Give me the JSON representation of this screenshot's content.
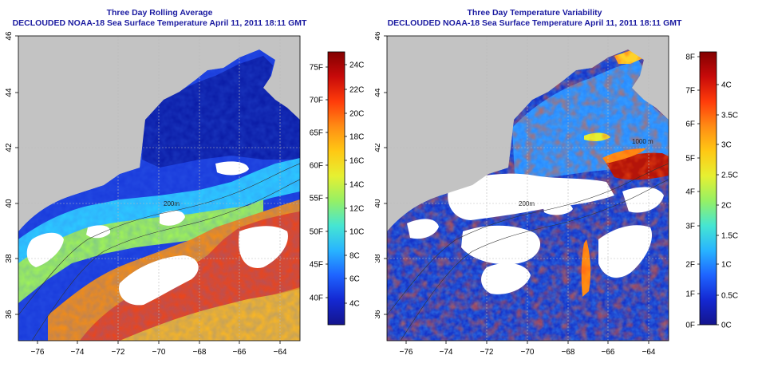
{
  "maps": [
    {
      "title": "Three Day Rolling Average",
      "subtitle": "DECLOUDED NOAA-18 Sea Surface Temperature April 11, 2011 18:11 GMT",
      "lat_ticks": [
        "36",
        "38",
        "40",
        "42",
        "44",
        "46"
      ],
      "lon_ticks": [
        "−76",
        "−74",
        "−72",
        "−70",
        "−68",
        "−66",
        "−64"
      ],
      "contour_labels": [
        "200m"
      ],
      "colorbar": {
        "gradient": [
          "#14148c",
          "#1428d2",
          "#1e64ff",
          "#28b4ff",
          "#46e6d2",
          "#96f064",
          "#e6f032",
          "#ffc814",
          "#ff8c14",
          "#ff3c0a",
          "#c80a0a",
          "#820000"
        ],
        "left_labels": [
          "40F",
          "45F",
          "50F",
          "55F",
          "60F",
          "65F",
          "70F",
          "75F"
        ],
        "right_labels": [
          "4C",
          "6C",
          "8C",
          "10C",
          "12C",
          "14C",
          "16C",
          "18C",
          "20C",
          "22C",
          "24C"
        ]
      }
    },
    {
      "title": "Three Day Temperature Variability",
      "subtitle": "DECLOUDED NOAA-18 Sea Surface Temperature April 11, 2011 18:11 GMT",
      "lat_ticks": [
        "36",
        "38",
        "40",
        "42",
        "44",
        "46"
      ],
      "lon_ticks": [
        "−76",
        "−74",
        "−72",
        "−70",
        "−68",
        "−66",
        "−64"
      ],
      "contour_labels": [
        "200m",
        "1000 m"
      ],
      "colorbar": {
        "gradient": [
          "#14148c",
          "#1428d2",
          "#1e64ff",
          "#28b4ff",
          "#46e6d2",
          "#96f064",
          "#e6f032",
          "#ffc814",
          "#ff8c14",
          "#ff3c0a",
          "#c80a0a",
          "#820000"
        ],
        "left_labels": [
          "0F",
          "1F",
          "2F",
          "3F",
          "4F",
          "5F",
          "6F",
          "7F",
          "8F"
        ],
        "right_labels": [
          "0C",
          "0.5C",
          "1C",
          "1.5C",
          "2C",
          "2.5C",
          "3C",
          "3.5C",
          "4C"
        ]
      }
    }
  ]
}
